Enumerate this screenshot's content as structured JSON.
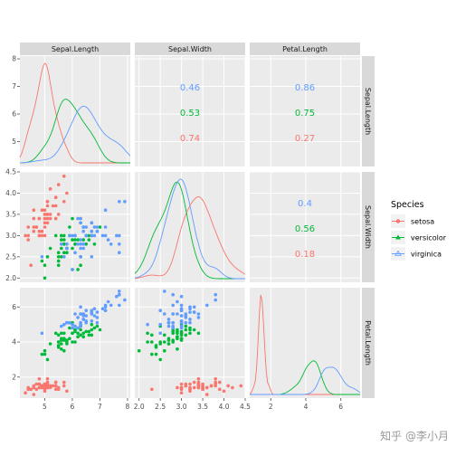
{
  "chart_data": {
    "type": "scatter",
    "variables": [
      "Sepal.Length",
      "Sepal.Width",
      "Petal.Length"
    ],
    "axis_ranges": {
      "Sepal.Length": [
        4.1,
        8.1
      ],
      "Sepal.Width": [
        1.9,
        4.5
      ],
      "Petal.Length": [
        0.8,
        7.1
      ]
    },
    "ticks": {
      "Sepal.Length": [
        5,
        6,
        7,
        8
      ],
      "Sepal.Width": [
        2.0,
        2.5,
        3.0,
        3.5,
        4.0,
        4.5
      ],
      "Petal.Length": [
        2,
        4,
        6
      ]
    },
    "tick_labels_x": {
      "Sepal.Length": [
        "5",
        "6",
        "7",
        "8"
      ],
      "Sepal.Width": [
        "2.0",
        "2.5",
        "3.0",
        "3.5",
        "4.0",
        "4.5"
      ],
      "Petal.Length": [
        "2",
        "4",
        "6"
      ]
    },
    "tick_labels_y": {
      "Sepal.Length": [
        "5",
        "6",
        "7",
        "8"
      ],
      "Sepal.Width": [
        "2.0",
        "2.5",
        "3.0",
        "3.5",
        "4.0",
        "4.5"
      ],
      "Petal.Length": [
        "2",
        "4",
        "6"
      ]
    },
    "species": [
      {
        "name": "setosa",
        "color": "#F8766D"
      },
      {
        "name": "versicolor",
        "color": "#00BA38"
      },
      {
        "name": "virginica",
        "color": "#619CFF"
      }
    ],
    "correlations": [
      {
        "row": "Sepal.Length",
        "col": "Sepal.Width",
        "values": [
          "0.46",
          "0.53",
          "0.74"
        ]
      },
      {
        "row": "Sepal.Length",
        "col": "Petal.Length",
        "values": [
          "0.86",
          "0.75",
          "0.27"
        ]
      },
      {
        "row": "Sepal.Width",
        "col": "Petal.Length",
        "values": [
          "0.4",
          "0.56",
          "0.18"
        ]
      }
    ],
    "correlation_order": [
      "virginica",
      "versicolor",
      "setosa"
    ],
    "points": {
      "setosa": {
        "Sepal.Length": [
          5.1,
          4.9,
          4.7,
          4.6,
          5.0,
          5.4,
          4.6,
          5.0,
          4.4,
          4.9,
          5.4,
          4.8,
          4.8,
          4.3,
          5.8,
          5.7,
          5.4,
          5.1,
          5.7,
          5.1,
          5.4,
          5.1,
          4.6,
          5.1,
          4.8,
          5.0,
          5.0,
          5.2,
          5.2,
          4.7,
          4.8,
          5.4,
          5.2,
          5.5,
          4.9,
          5.0,
          5.5,
          4.9,
          4.4,
          5.1,
          5.0,
          4.5,
          4.4,
          5.0,
          5.1,
          4.8,
          5.1,
          4.6,
          5.3,
          5.0
        ],
        "Sepal.Width": [
          3.5,
          3.0,
          3.2,
          3.1,
          3.6,
          3.9,
          3.4,
          3.4,
          2.9,
          3.1,
          3.7,
          3.4,
          3.0,
          3.0,
          4.0,
          4.4,
          3.9,
          3.5,
          3.8,
          3.8,
          3.4,
          3.7,
          3.6,
          3.3,
          3.4,
          3.0,
          3.4,
          3.5,
          3.4,
          3.2,
          3.1,
          3.4,
          4.1,
          4.2,
          3.1,
          3.2,
          3.5,
          3.6,
          3.0,
          3.4,
          3.5,
          2.3,
          3.2,
          3.5,
          3.8,
          3.0,
          3.8,
          3.2,
          3.7,
          3.3
        ],
        "Petal.Length": [
          1.4,
          1.4,
          1.3,
          1.5,
          1.4,
          1.7,
          1.4,
          1.5,
          1.4,
          1.5,
          1.5,
          1.6,
          1.4,
          1.1,
          1.2,
          1.5,
          1.3,
          1.4,
          1.7,
          1.5,
          1.7,
          1.5,
          1.0,
          1.7,
          1.9,
          1.6,
          1.6,
          1.5,
          1.4,
          1.6,
          1.6,
          1.5,
          1.5,
          1.4,
          1.5,
          1.2,
          1.3,
          1.4,
          1.3,
          1.5,
          1.3,
          1.3,
          1.3,
          1.6,
          1.9,
          1.4,
          1.6,
          1.4,
          1.5,
          1.4
        ]
      },
      "versicolor": {
        "Sepal.Length": [
          7.0,
          6.4,
          6.9,
          5.5,
          6.5,
          5.7,
          6.3,
          4.9,
          6.6,
          5.2,
          5.0,
          5.9,
          6.0,
          6.1,
          5.6,
          6.7,
          5.6,
          5.8,
          6.2,
          5.6,
          5.9,
          6.1,
          6.3,
          6.1,
          6.4,
          6.6,
          6.8,
          6.7,
          6.0,
          5.7,
          5.5,
          5.5,
          5.8,
          6.0,
          5.4,
          6.0,
          6.7,
          6.3,
          5.6,
          5.5,
          5.5,
          6.1,
          5.8,
          5.0,
          5.6,
          5.7,
          5.7,
          6.2,
          5.1,
          5.7
        ],
        "Sepal.Width": [
          3.2,
          3.2,
          3.1,
          2.3,
          2.8,
          2.8,
          3.3,
          2.4,
          2.9,
          2.7,
          2.0,
          3.0,
          2.2,
          2.9,
          2.9,
          3.1,
          3.0,
          2.7,
          2.2,
          2.5,
          3.2,
          2.8,
          2.5,
          2.8,
          2.9,
          3.0,
          2.8,
          3.0,
          2.9,
          2.6,
          2.4,
          2.4,
          2.7,
          2.7,
          3.0,
          3.4,
          3.1,
          2.3,
          3.0,
          2.5,
          2.6,
          3.0,
          2.6,
          2.3,
          2.7,
          3.0,
          2.9,
          2.9,
          2.5,
          2.8
        ],
        "Petal.Length": [
          4.7,
          4.5,
          4.9,
          4.0,
          4.6,
          4.5,
          4.7,
          3.3,
          4.6,
          3.9,
          3.5,
          4.2,
          4.0,
          4.7,
          3.6,
          4.4,
          4.5,
          4.1,
          4.5,
          3.9,
          4.8,
          4.0,
          4.9,
          4.7,
          4.3,
          4.4,
          4.8,
          5.0,
          4.5,
          3.5,
          3.8,
          3.7,
          3.9,
          5.1,
          4.5,
          4.5,
          4.7,
          4.4,
          4.1,
          4.0,
          4.4,
          4.6,
          4.0,
          3.3,
          4.2,
          4.2,
          4.2,
          4.3,
          3.0,
          4.1
        ]
      },
      "virginica": {
        "Sepal.Length": [
          6.3,
          5.8,
          7.1,
          6.3,
          6.5,
          7.6,
          4.9,
          7.3,
          6.7,
          7.2,
          6.5,
          6.4,
          6.8,
          5.7,
          5.8,
          6.4,
          6.5,
          7.7,
          7.7,
          6.0,
          6.9,
          5.6,
          7.7,
          6.3,
          6.7,
          7.2,
          6.2,
          6.1,
          6.4,
          7.2,
          7.4,
          7.9,
          6.4,
          6.3,
          6.1,
          7.7,
          6.3,
          6.4,
          6.0,
          6.9,
          6.7,
          6.9,
          5.8,
          6.8,
          6.7,
          6.7,
          6.3,
          6.5,
          6.2,
          5.9
        ],
        "Sepal.Width": [
          3.3,
          2.7,
          3.0,
          2.9,
          3.0,
          3.0,
          2.5,
          2.9,
          2.5,
          3.6,
          3.2,
          2.7,
          3.0,
          2.5,
          2.8,
          3.2,
          3.0,
          3.8,
          2.6,
          2.2,
          3.2,
          2.8,
          2.8,
          2.7,
          3.3,
          3.2,
          2.8,
          3.0,
          2.8,
          3.0,
          2.8,
          3.8,
          2.8,
          2.8,
          2.6,
          3.0,
          3.4,
          3.1,
          3.0,
          3.1,
          3.1,
          3.1,
          2.7,
          3.2,
          3.3,
          3.0,
          2.5,
          3.0,
          3.4,
          3.0
        ],
        "Petal.Length": [
          6.0,
          5.1,
          5.9,
          5.6,
          5.8,
          6.6,
          4.5,
          6.3,
          5.8,
          6.1,
          5.1,
          5.3,
          5.5,
          5.0,
          5.1,
          5.3,
          5.5,
          6.7,
          6.9,
          5.0,
          5.7,
          4.9,
          6.7,
          4.9,
          5.7,
          6.0,
          4.8,
          4.9,
          5.6,
          5.8,
          6.1,
          6.4,
          5.6,
          5.1,
          5.6,
          6.1,
          5.6,
          5.5,
          4.8,
          5.4,
          5.6,
          5.1,
          5.1,
          5.9,
          5.7,
          5.2,
          5.0,
          5.2,
          5.4,
          5.1
        ]
      }
    },
    "legend": {
      "title": "Species",
      "placement": "right"
    },
    "grid": true
  },
  "watermark": "知乎 @李小月"
}
